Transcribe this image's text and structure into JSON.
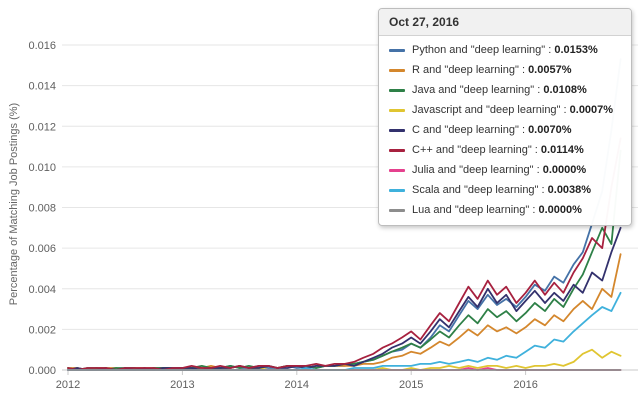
{
  "tooltip": {
    "title": "Oct 27, 2016"
  },
  "chart_data": {
    "type": "line",
    "title": "",
    "xlabel": "",
    "ylabel": "Percentage of Matching Job Postings (%)",
    "xlim": [
      2012,
      2017
    ],
    "ylim": [
      0,
      0.016
    ],
    "xticks": [
      2012,
      2013,
      2014,
      2015,
      2016
    ],
    "yticks": [
      0,
      0.002,
      0.004,
      0.006,
      0.008,
      0.01,
      0.012,
      0.014,
      0.016
    ],
    "grid": "horizontal",
    "legend_position": "tooltip-top-right",
    "x": [
      2012.0,
      2012.08,
      2012.17,
      2012.25,
      2012.33,
      2012.42,
      2012.5,
      2012.58,
      2012.67,
      2012.75,
      2012.83,
      2012.92,
      2013.0,
      2013.08,
      2013.17,
      2013.25,
      2013.33,
      2013.42,
      2013.5,
      2013.58,
      2013.67,
      2013.75,
      2013.83,
      2013.92,
      2014.0,
      2014.08,
      2014.17,
      2014.25,
      2014.33,
      2014.42,
      2014.5,
      2014.58,
      2014.67,
      2014.75,
      2014.83,
      2014.92,
      2015.0,
      2015.08,
      2015.17,
      2015.25,
      2015.33,
      2015.42,
      2015.5,
      2015.58,
      2015.67,
      2015.75,
      2015.83,
      2015.92,
      2016.0,
      2016.08,
      2016.17,
      2016.25,
      2016.33,
      2016.42,
      2016.5,
      2016.58,
      2016.67,
      2016.75,
      2016.83
    ],
    "series": [
      {
        "id": "python",
        "name": "Python and \"deep learning\"",
        "color": "#4572a7",
        "tooltip_value": "0.0153%",
        "values": [
          0.0,
          0.0001,
          0.0,
          0.0001,
          0.0001,
          0.0,
          0.0001,
          0.0001,
          0.0,
          0.0001,
          0.0001,
          0.0001,
          0.0001,
          0.0,
          0.0001,
          0.0001,
          0.0001,
          0.0002,
          0.0001,
          0.0001,
          0.0002,
          0.0001,
          0.0001,
          0.0002,
          0.0001,
          0.0002,
          0.0001,
          0.0002,
          0.0002,
          0.0002,
          0.0003,
          0.0004,
          0.0005,
          0.0007,
          0.0009,
          0.001,
          0.0013,
          0.0011,
          0.0016,
          0.0022,
          0.0019,
          0.0027,
          0.0034,
          0.003,
          0.0037,
          0.0032,
          0.0035,
          0.0031,
          0.0036,
          0.0042,
          0.0039,
          0.0046,
          0.0043,
          0.0052,
          0.0058,
          0.0072,
          0.0088,
          0.0118,
          0.0153
        ]
      },
      {
        "id": "r",
        "name": "R and \"deep learning\"",
        "color": "#d4872d",
        "tooltip_value": "0.0057%",
        "values": [
          0.0001,
          0.0001,
          0.0,
          0.0001,
          0.0001,
          0.0001,
          0.0,
          0.0001,
          0.0001,
          0.0001,
          0.0001,
          0.0001,
          0.0001,
          0.0001,
          0.0001,
          0.0002,
          0.0001,
          0.0001,
          0.0002,
          0.0001,
          0.0001,
          0.0002,
          0.0001,
          0.0002,
          0.0002,
          0.0001,
          0.0002,
          0.0002,
          0.0002,
          0.0002,
          0.0002,
          0.0003,
          0.0003,
          0.0004,
          0.0006,
          0.0007,
          0.0009,
          0.0008,
          0.0011,
          0.0014,
          0.0012,
          0.0016,
          0.002,
          0.0017,
          0.0022,
          0.0019,
          0.0021,
          0.0018,
          0.0021,
          0.0025,
          0.0022,
          0.0027,
          0.0024,
          0.003,
          0.0034,
          0.003,
          0.004,
          0.0036,
          0.0057
        ]
      },
      {
        "id": "java",
        "name": "Java and \"deep learning\"",
        "color": "#2e8047",
        "tooltip_value": "0.0108%",
        "values": [
          0.0001,
          0.0,
          0.0001,
          0.0001,
          0.0,
          0.0001,
          0.0001,
          0.0001,
          0.0,
          0.0001,
          0.0001,
          0.0001,
          0.0001,
          0.0001,
          0.0002,
          0.0001,
          0.0001,
          0.0002,
          0.0001,
          0.0002,
          0.0001,
          0.0002,
          0.0001,
          0.0002,
          0.0002,
          0.0002,
          0.0001,
          0.0002,
          0.0002,
          0.0003,
          0.0003,
          0.0004,
          0.0005,
          0.0007,
          0.0009,
          0.0011,
          0.0013,
          0.0011,
          0.0015,
          0.0019,
          0.0016,
          0.0022,
          0.0027,
          0.0023,
          0.003,
          0.0026,
          0.0029,
          0.0024,
          0.0028,
          0.0033,
          0.0029,
          0.0035,
          0.0031,
          0.004,
          0.0047,
          0.0058,
          0.007,
          0.0062,
          0.0108
        ]
      },
      {
        "id": "javascript",
        "name": "Javascript and \"deep learning\"",
        "color": "#e0c531",
        "tooltip_value": "0.0007%",
        "values": [
          0.0,
          0.0,
          0.0,
          0.0,
          0.0,
          0.0,
          0.0,
          0.0,
          0.0,
          0.0,
          0.0,
          0.0,
          0.0,
          0.0,
          0.0,
          0.0,
          0.0,
          0.0,
          0.0,
          0.0,
          0.0001,
          0.0,
          0.0,
          0.0,
          0.0,
          0.0,
          0.0,
          0.0,
          0.0,
          0.0,
          0.0,
          0.0,
          0.0,
          0.0001,
          0.0,
          0.0,
          0.0001,
          0.0,
          0.0001,
          0.0001,
          0.0002,
          0.0001,
          0.0002,
          0.0001,
          0.0002,
          0.0002,
          0.0001,
          0.0002,
          0.0001,
          0.0002,
          0.0002,
          0.0003,
          0.0002,
          0.0004,
          0.0008,
          0.001,
          0.0006,
          0.0009,
          0.0007
        ]
      },
      {
        "id": "c",
        "name": "C and \"deep learning\"",
        "color": "#33316d",
        "tooltip_value": "0.0070%",
        "values": [
          0.0,
          0.0001,
          0.0,
          0.0,
          0.0001,
          0.0,
          0.0001,
          0.0,
          0.0001,
          0.0,
          0.0001,
          0.0001,
          0.0001,
          0.0001,
          0.0,
          0.0001,
          0.0001,
          0.0001,
          0.0002,
          0.0001,
          0.0001,
          0.0002,
          0.0001,
          0.0001,
          0.0002,
          0.0001,
          0.0002,
          0.0002,
          0.0002,
          0.0003,
          0.0002,
          0.0004,
          0.0006,
          0.0008,
          0.0011,
          0.0013,
          0.0016,
          0.0013,
          0.0019,
          0.0025,
          0.0021,
          0.0029,
          0.0036,
          0.0031,
          0.004,
          0.0033,
          0.0037,
          0.0029,
          0.0034,
          0.0039,
          0.0033,
          0.0038,
          0.0034,
          0.0042,
          0.0038,
          0.0048,
          0.0044,
          0.0058,
          0.007
        ]
      },
      {
        "id": "cpp",
        "name": "C++ and \"deep learning\"",
        "color": "#a7213f",
        "tooltip_value": "0.0114%",
        "values": [
          0.0001,
          0.0,
          0.0001,
          0.0001,
          0.0001,
          0.0,
          0.0001,
          0.0001,
          0.0001,
          0.0001,
          0.0,
          0.0001,
          0.0001,
          0.0002,
          0.0001,
          0.0001,
          0.0002,
          0.0001,
          0.0002,
          0.0001,
          0.0002,
          0.0002,
          0.0001,
          0.0002,
          0.0002,
          0.0002,
          0.0003,
          0.0002,
          0.0003,
          0.0003,
          0.0004,
          0.0006,
          0.0008,
          0.0011,
          0.0013,
          0.0016,
          0.0019,
          0.0015,
          0.0022,
          0.0028,
          0.0024,
          0.0033,
          0.0041,
          0.0035,
          0.0044,
          0.0037,
          0.0041,
          0.0033,
          0.0038,
          0.0044,
          0.0037,
          0.0043,
          0.0038,
          0.0048,
          0.0055,
          0.0065,
          0.006,
          0.009,
          0.0114
        ]
      },
      {
        "id": "julia",
        "name": "Julia and \"deep learning\"",
        "color": "#e5418e",
        "tooltip_value": "0.0000%",
        "values": [
          0.0,
          0.0,
          0.0,
          0.0,
          0.0,
          0.0,
          0.0,
          0.0,
          0.0,
          0.0,
          0.0,
          0.0,
          0.0,
          0.0,
          0.0,
          0.0,
          0.0,
          0.0,
          0.0,
          0.0,
          0.0,
          0.0,
          0.0,
          0.0,
          0.0,
          0.0,
          0.0,
          0.0,
          0.0,
          0.0,
          0.0,
          0.0,
          0.0,
          0.0,
          0.0,
          0.0,
          0.0,
          0.0,
          0.0,
          0.0,
          0.0,
          0.0,
          0.0001,
          0.0,
          0.0001,
          0.0,
          0.0,
          0.0,
          0.0,
          0.0,
          0.0,
          0.0,
          0.0,
          0.0,
          0.0,
          0.0,
          0.0,
          0.0,
          0.0
        ]
      },
      {
        "id": "scala",
        "name": "Scala and \"deep learning\"",
        "color": "#3fb1dc",
        "tooltip_value": "0.0038%",
        "values": [
          0.0,
          0.0,
          0.0,
          0.0,
          0.0,
          0.0,
          0.0,
          0.0,
          0.0,
          0.0,
          0.0,
          0.0,
          0.0,
          0.0,
          0.0,
          0.0,
          0.0,
          0.0,
          0.0,
          0.0,
          0.0,
          0.0,
          0.0,
          0.0,
          0.0,
          0.0001,
          0.0,
          0.0,
          0.0,
          0.0,
          0.0001,
          0.0001,
          0.0001,
          0.0002,
          0.0002,
          0.0002,
          0.0002,
          0.0003,
          0.0003,
          0.0004,
          0.0003,
          0.0004,
          0.0005,
          0.0004,
          0.0006,
          0.0005,
          0.0007,
          0.0006,
          0.0009,
          0.0012,
          0.0011,
          0.0015,
          0.0014,
          0.0019,
          0.0023,
          0.0027,
          0.0031,
          0.0029,
          0.0038
        ]
      },
      {
        "id": "lua",
        "name": "Lua and \"deep learning\"",
        "color": "#8d8d8d",
        "tooltip_value": "0.0000%",
        "values": [
          0.0,
          0.0,
          0.0,
          0.0,
          0.0,
          0.0,
          0.0,
          0.0,
          0.0,
          0.0,
          0.0,
          0.0,
          0.0,
          0.0,
          0.0,
          0.0,
          0.0,
          0.0,
          0.0,
          0.0,
          0.0,
          0.0,
          0.0,
          0.0,
          0.0,
          0.0,
          0.0,
          0.0,
          0.0,
          0.0,
          0.0,
          0.0,
          0.0,
          0.0,
          0.0,
          0.0,
          0.0,
          0.0,
          0.0,
          0.0,
          0.0,
          0.0,
          0.0,
          0.0,
          0.0,
          0.0,
          0.0,
          0.0,
          0.0,
          0.0,
          0.0,
          0.0,
          0.0,
          0.0,
          0.0,
          0.0,
          0.0,
          0.0,
          0.0
        ]
      }
    ]
  }
}
